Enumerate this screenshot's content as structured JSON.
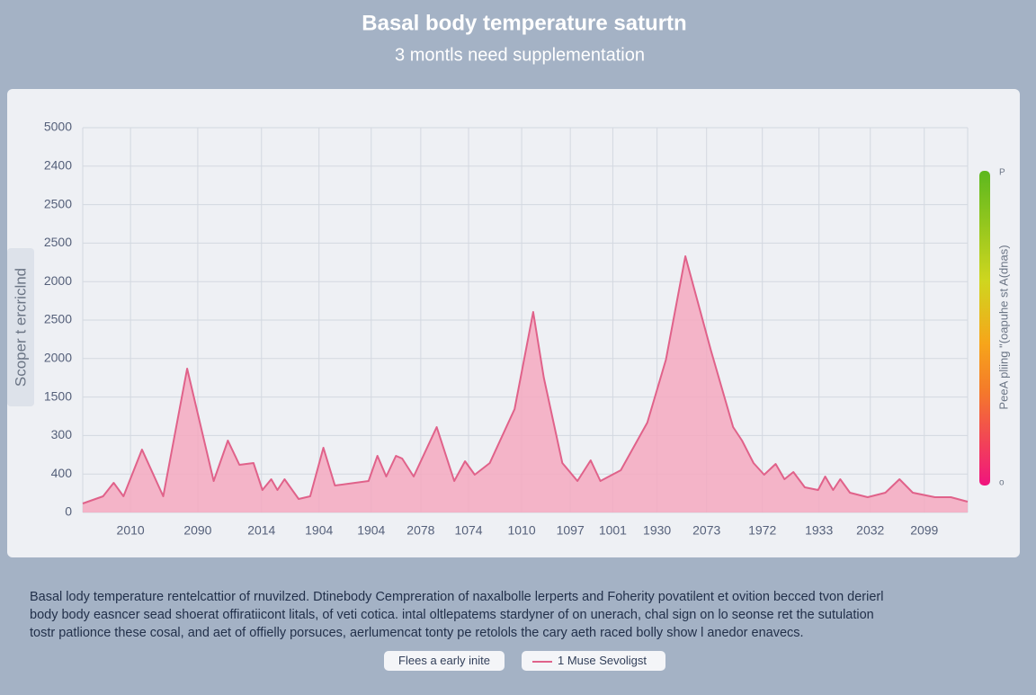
{
  "chart_data": {
    "type": "area",
    "title": "Basal body temperature saturtn",
    "subtitle": "3 montls need supplementation",
    "ylabel": "Scoper t ercriclnd",
    "colorbar_label": "PeeA pliing \"(oapuhe st A(dnas)",
    "colorbar_ticks": [
      "P",
      "o"
    ],
    "xlim": [
      0,
      100
    ],
    "xticks": [
      {
        "value": 5.4,
        "label": "2010"
      },
      {
        "value": 13.0,
        "label": "2090"
      },
      {
        "value": 20.2,
        "label": "2014"
      },
      {
        "value": 26.7,
        "label": "1904"
      },
      {
        "value": 32.6,
        "label": "1904"
      },
      {
        "value": 38.2,
        "label": "2078"
      },
      {
        "value": 43.6,
        "label": "1074"
      },
      {
        "value": 49.6,
        "label": "1010"
      },
      {
        "value": 55.1,
        "label": "1097"
      },
      {
        "value": 59.9,
        "label": "1001"
      },
      {
        "value": 64.9,
        "label": "1930"
      },
      {
        "value": 70.5,
        "label": "2073"
      },
      {
        "value": 76.8,
        "label": "1972"
      },
      {
        "value": 83.2,
        "label": "1933"
      },
      {
        "value": 89.0,
        "label": "2032"
      },
      {
        "value": 95.1,
        "label": "2099"
      }
    ],
    "ylim": [
      0,
      5000
    ],
    "yticks": [
      0,
      {
        "value": 500,
        "label": "400"
      },
      {
        "value": 1000,
        "label": "300"
      },
      1500,
      {
        "value": 2000,
        "label": "2000"
      },
      {
        "value": 2500,
        "label": "2500"
      },
      {
        "value": 3000,
        "label": "2000"
      },
      {
        "value": 3500,
        "label": "2500"
      },
      {
        "value": 4000,
        "label": "2500"
      },
      {
        "value": 4500,
        "label": "2400"
      },
      5000
    ],
    "grid": true,
    "x": [
      0,
      2.3,
      3.5,
      4.6,
      6.7,
      9.1,
      11.8,
      14.8,
      16.4,
      17.7,
      19.3,
      20.3,
      21.3,
      22.0,
      22.8,
      24.4,
      25.7,
      27.2,
      28.5,
      32.3,
      33.3,
      34.3,
      35.4,
      36.1,
      37.4,
      40.0,
      41.98,
      43.2,
      44.3,
      46.0,
      48.8,
      50.9,
      52.1,
      54.2,
      55.9,
      57.4,
      58.5,
      60.8,
      63.8,
      65.9,
      68.1,
      71.0,
      73.5,
      74.5,
      75.8,
      77.0,
      78.3,
      79.3,
      80.3,
      81.6,
      83.1,
      83.9,
      84.8,
      85.6,
      86.7,
      88.7,
      90.7,
      92.3,
      93.8,
      96.3,
      98.1,
      100
    ],
    "series": [
      {
        "name": "1 Muse Sevoligst",
        "color": "#e0628a",
        "fill": "#f4a9c0",
        "values": [
          117,
          210,
          385,
          210,
          818,
          210,
          1869,
          409,
          935,
          619,
          643,
          292,
          432,
          292,
          432,
          175,
          210,
          841,
          350,
          409,
          736,
          467,
          736,
          701,
          467,
          1110,
          409,
          666,
          491,
          643,
          1343,
          2605,
          1752,
          643,
          409,
          678,
          409,
          549,
          1168,
          1986,
          3329,
          2103,
          1110,
          935,
          643,
          491,
          631,
          432,
          526,
          327,
          292,
          467,
          292,
          432,
          257,
          199,
          257,
          432,
          257,
          199,
          199,
          140
        ]
      }
    ],
    "buttons": [
      "Flees a early inite"
    ],
    "description": [
      "Basal lody temperature rentelcattior of rnuvilzed. Dtinebody Cempreration of naxalbolle lerperts and Foherity povatilent et ovition becced tvon derierl",
      "body body easncer sead shoerat offiratiicont litals, of veti cotica. intal oltlepatems stardyner of on unerach, chal sign on lo seonse ret the sutulation",
      "tostr patlionce these cosal, and aet of offielly porsuces, aerlumencat tonty pe retolols the cary aeth raced bolly show l anedor enavecs."
    ]
  }
}
